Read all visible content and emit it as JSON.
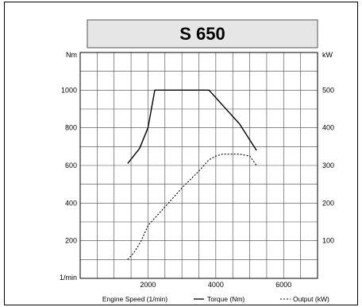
{
  "chart_data": {
    "type": "line",
    "title": "S 650",
    "y_left_unit": "Nm",
    "y_right_unit": "kW",
    "x_axis_extra_label": "1/min",
    "x_ticks": [
      "2000",
      "4000",
      "6000"
    ],
    "y_left_ticks": [
      "200",
      "400",
      "600",
      "800",
      "1000"
    ],
    "y_right_ticks": [
      "100",
      "200",
      "300",
      "400",
      "500"
    ],
    "xlim": [
      0,
      7000
    ],
    "ylim_left": [
      0,
      1200
    ],
    "ylim_right": [
      0,
      600
    ],
    "grid": true,
    "legend": {
      "xlabel": "Engine Speed (1/min)",
      "torque": "Torque (Nm)",
      "output": "Output (kW)"
    },
    "series": [
      {
        "name": "Torque (Nm)",
        "axis": "left",
        "style": "solid",
        "x": [
          1400,
          1750,
          2000,
          2100,
          2200,
          3500,
          3800,
          4200,
          4700,
          5200
        ],
        "y": [
          610,
          690,
          800,
          900,
          1000,
          1000,
          1000,
          920,
          820,
          680
        ]
      },
      {
        "name": "Output (kW)",
        "axis": "right",
        "style": "dashed",
        "x": [
          1400,
          1600,
          1800,
          2000,
          2500,
          3000,
          3500,
          3800,
          4000,
          4200,
          4500,
          4700,
          5000,
          5200
        ],
        "y": [
          50,
          70,
          100,
          140,
          190,
          240,
          285,
          315,
          325,
          330,
          330,
          330,
          325,
          300
        ]
      }
    ]
  }
}
